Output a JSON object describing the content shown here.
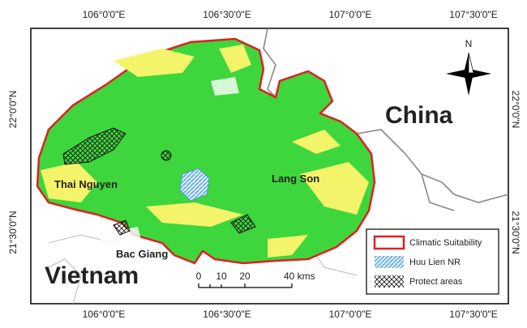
{
  "map": {
    "graticule": {
      "longitudes": [
        "106°0'0\"E",
        "106°30'0\"E",
        "107°0'0\"E",
        "107°30'0\"E"
      ],
      "latitudes": [
        "22°0'0\"N",
        "21°30'0\"N"
      ]
    },
    "places": {
      "china": "China",
      "vietnam": "Vietnam",
      "thai_nguyen": "Thai Nguyen",
      "lang_son": "Lang Son",
      "bac_giang": "Bac Giang"
    },
    "north": "N",
    "scale": {
      "zero": "0",
      "ten": "10",
      "twenty": "20",
      "forty": "40 kms"
    },
    "legend": [
      "Climatic Suitability",
      "Huu Lien NR",
      "Protect areas"
    ]
  }
}
